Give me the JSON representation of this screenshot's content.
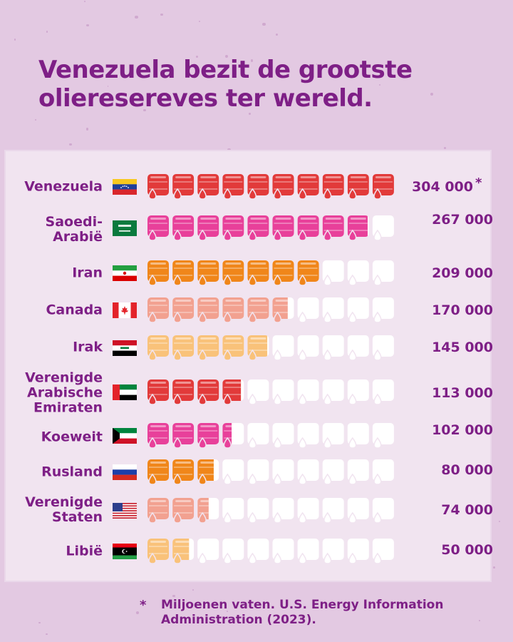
{
  "title_lines": [
    "Venezuela bezit de grootste",
    "olieresereves ter wereld."
  ],
  "chart_data": {
    "type": "pictograph",
    "title": "Venezuela bezit de grootste olieresereves ter wereld.",
    "unit_marker": "*",
    "units_per_icon_max": 10,
    "max_value": 304000,
    "categories": [
      {
        "label": "Venezuela",
        "value": 304000,
        "value_label": "304 000",
        "color": "#e23a3a",
        "flag": "flag-venezuela"
      },
      {
        "label": "Saoedi-Arabië",
        "value": 267000,
        "value_label": "267 000",
        "color": "#e8409a",
        "flag": "flag-saudi-arabia"
      },
      {
        "label": "Iran",
        "value": 209000,
        "value_label": "209 000",
        "color": "#f0861a",
        "flag": "flag-iran"
      },
      {
        "label": "Canada",
        "value": 170000,
        "value_label": "170 000",
        "color": "#f2a190",
        "flag": "flag-canada"
      },
      {
        "label": "Irak",
        "value": 145000,
        "value_label": "145 000",
        "color": "#f9c27a",
        "flag": "flag-iraq"
      },
      {
        "label": "Verenigde Arabische Emiraten",
        "value": 113000,
        "value_label": "113 000",
        "color": "#e23a3a",
        "flag": "flag-uae"
      },
      {
        "label": "Koeweit",
        "value": 102000,
        "value_label": "102 000",
        "color": "#e8409a",
        "flag": "flag-kuwait"
      },
      {
        "label": "Rusland",
        "value": 80000,
        "value_label": "80 000",
        "color": "#f0861a",
        "flag": "flag-russia"
      },
      {
        "label": "Verenigde Staten",
        "value": 74000,
        "value_label": "74 000",
        "color": "#f2a190",
        "flag": "flag-usa"
      },
      {
        "label": "Libië",
        "value": 50000,
        "value_label": "50 000",
        "color": "#f9c27a",
        "flag": "flag-libya"
      }
    ],
    "empty_color": "#ffffff"
  },
  "label_lines": [
    [
      "Venezuela"
    ],
    [
      "Saoedi-",
      "Arabië"
    ],
    [
      "Iran"
    ],
    [
      "Canada"
    ],
    [
      "Irak"
    ],
    [
      "Verenigde",
      "Arabische",
      "Emiraten"
    ],
    [
      "Koeweit"
    ],
    [
      "Rusland"
    ],
    [
      "Verenigde",
      "Staten"
    ],
    [
      "Libië"
    ]
  ],
  "footnote": {
    "marker": "*",
    "text": "Miljoenen vaten. U.S. Energy Information Administration (2023)."
  },
  "colors": {
    "background": "#e3c9e2",
    "panel": "#f1e4f0",
    "text": "#7e1f86"
  }
}
